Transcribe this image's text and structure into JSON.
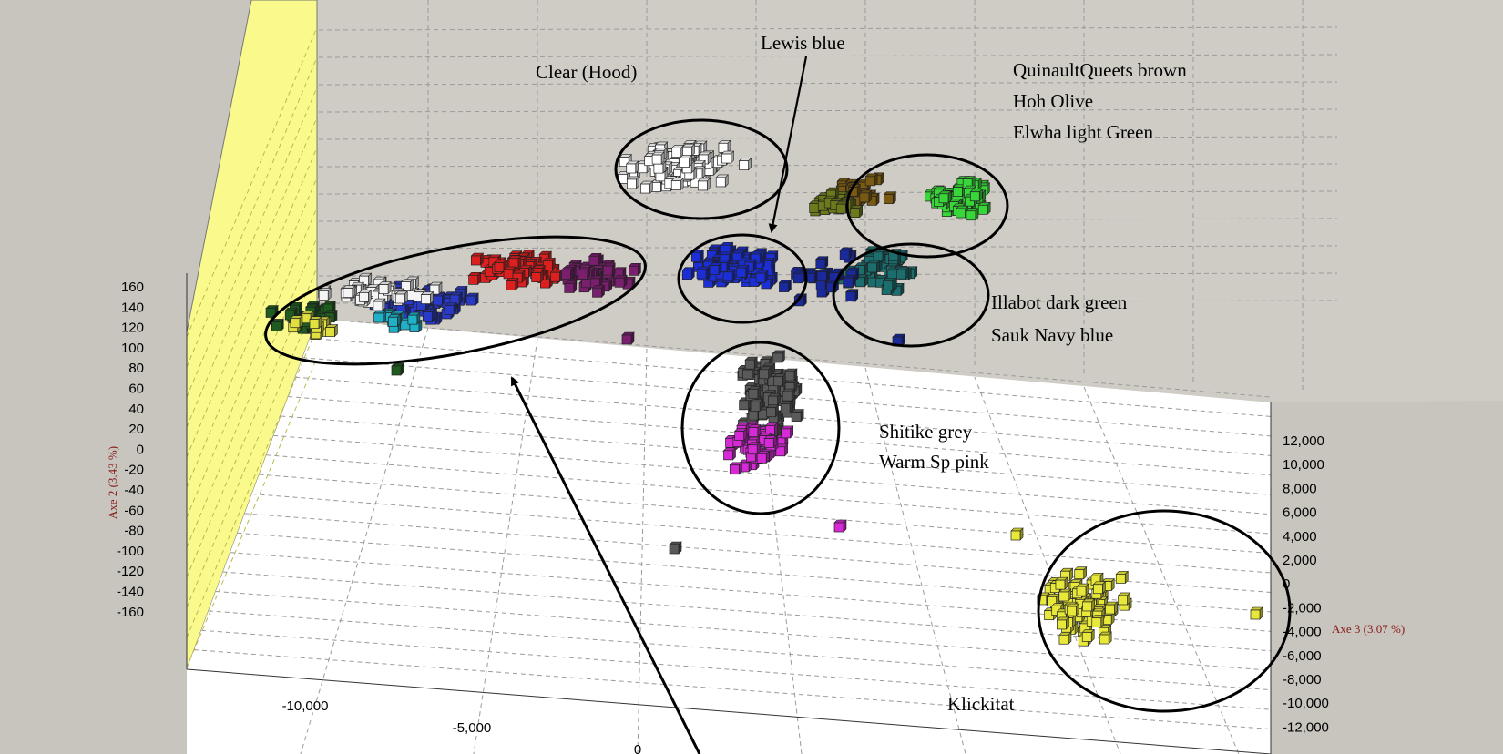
{
  "chart_data": {
    "type": "scatter",
    "title": "",
    "axes": {
      "axis2": {
        "label": "Axe 2 (3.43 %)",
        "ticks": [
          "160",
          "140",
          "120",
          "100",
          "80",
          "60",
          "40",
          "20",
          "0",
          "-20",
          "-40",
          "-60",
          "-80",
          "-100",
          "-120",
          "-140",
          "-160"
        ]
      },
      "axis3": {
        "label": "Axe 3 (3.07 %)",
        "ticks": [
          "12,000",
          "10,000",
          "8,000",
          "6,000",
          "4,000",
          "2,000",
          "0",
          "-2,000",
          "-4,000",
          "-6,000",
          "-8,000",
          "-10,000",
          "-12,000"
        ]
      },
      "axis1": {
        "ticks": [
          "-10,000",
          "-5,000",
          "0"
        ]
      }
    },
    "grid": true,
    "annotations": [
      {
        "text": "Lewis blue"
      },
      {
        "text": "Clear (Hood)"
      },
      {
        "text": "QuinaultQueets brown"
      },
      {
        "text": "Hoh Olive"
      },
      {
        "text": "Elwha light Green"
      },
      {
        "text": "Illabot dark green"
      },
      {
        "text": "Sauk Navy blue"
      },
      {
        "text": "Shitike grey"
      },
      {
        "text": "Warm Sp pink"
      },
      {
        "text": "Klickitat"
      }
    ],
    "clusters": [
      {
        "group": "Clear (Hood)",
        "color": "#ffffff",
        "n": 110
      },
      {
        "group": "Lewis",
        "color": "#1c2fd6",
        "n": 80
      },
      {
        "group": "Quinault/Queets",
        "color": "#7a5a12",
        "n": 30
      },
      {
        "group": "Hoh",
        "color": "#6d7a1c",
        "n": 25
      },
      {
        "group": "Elwha",
        "color": "#38d638",
        "n": 55
      },
      {
        "group": "Illabot",
        "color": "#1c6e6e",
        "n": 45
      },
      {
        "group": "Sauk",
        "color": "#1a2a9c",
        "n": 20
      },
      {
        "group": "Shitike",
        "color": "#5a5a5a",
        "n": 75
      },
      {
        "group": "Warm Springs",
        "color": "#d62ad6",
        "n": 45
      },
      {
        "group": "Klickitat",
        "color": "#e8e83a",
        "n": 65
      },
      {
        "group": "Red",
        "color": "#dc2020",
        "n": 60
      },
      {
        "group": "Purple",
        "color": "#7a1f6e",
        "n": 45
      },
      {
        "group": "Blue (left)",
        "color": "#2a3ac8",
        "n": 55
      },
      {
        "group": "White (left)",
        "color": "#f4f4f4",
        "n": 40
      },
      {
        "group": "Dark green (left)",
        "color": "#1f5a1f",
        "n": 25
      },
      {
        "group": "Yellow (left)",
        "color": "#e0e040",
        "n": 15
      },
      {
        "group": "Teal (left)",
        "color": "#20b0c8",
        "n": 12
      }
    ],
    "colors": {
      "back_wall": "#cfccc6",
      "left_wall": "#fafa8c",
      "floor": "#ffffff",
      "axis_title": "#8b1a1a"
    }
  }
}
